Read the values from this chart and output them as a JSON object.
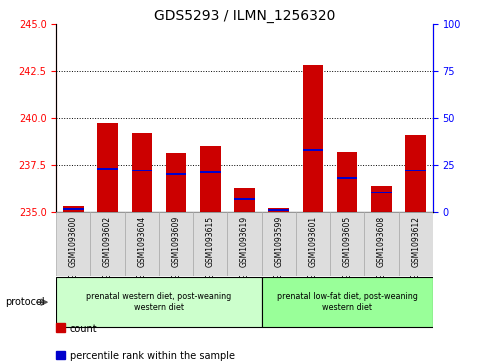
{
  "title": "GDS5293 / ILMN_1256320",
  "samples": [
    "GSM1093600",
    "GSM1093602",
    "GSM1093604",
    "GSM1093609",
    "GSM1093615",
    "GSM1093619",
    "GSM1093599",
    "GSM1093601",
    "GSM1093605",
    "GSM1093608",
    "GSM1093612"
  ],
  "bar_tops": [
    235.35,
    239.72,
    239.18,
    238.12,
    238.5,
    236.3,
    235.22,
    242.82,
    238.18,
    236.4,
    239.1
  ],
  "blue_positions": [
    235.18,
    237.32,
    237.22,
    237.05,
    237.12,
    235.72,
    235.12,
    238.32,
    236.82,
    236.05,
    237.22
  ],
  "base": 235.0,
  "ylim_left": [
    235.0,
    245.0
  ],
  "ylim_right": [
    0,
    100
  ],
  "yticks_left": [
    235,
    237.5,
    240,
    242.5,
    245
  ],
  "yticks_right": [
    0,
    25,
    50,
    75,
    100
  ],
  "bar_color": "#cc0000",
  "blue_color": "#0000cc",
  "protocol_groups": [
    {
      "label": "prenatal western diet, post-weaning\nwestern diet",
      "indices": [
        0,
        1,
        2,
        3,
        4,
        5
      ],
      "color": "#ccffcc"
    },
    {
      "label": "prenatal low-fat diet, post-weaning\nwestern diet",
      "indices": [
        6,
        7,
        8,
        9,
        10
      ],
      "color": "#99ff99"
    }
  ],
  "protocol_label": "protocol",
  "legend_items": [
    {
      "label": "count",
      "color": "#cc0000"
    },
    {
      "label": "percentile rank within the sample",
      "color": "#0000cc"
    }
  ],
  "background_color": "#ffffff",
  "title_fontsize": 10,
  "tick_fontsize": 7,
  "label_fontsize": 7,
  "blue_bar_height": 0.1,
  "bar_width": 0.6
}
